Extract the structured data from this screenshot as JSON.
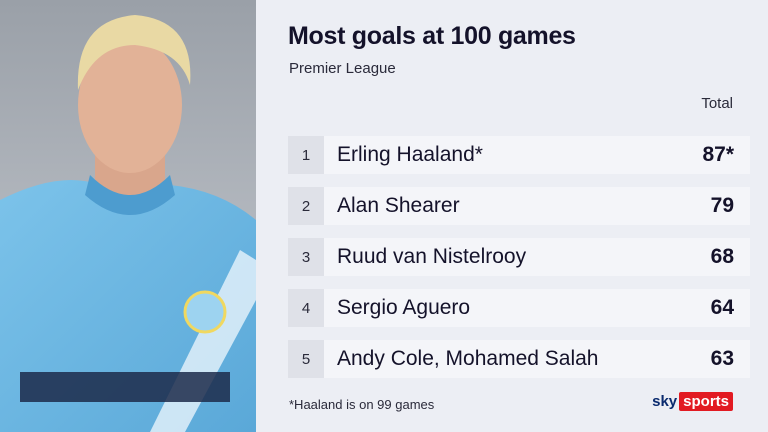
{
  "header": {
    "title": "Most goals at 100 games",
    "subtitle": "Premier League"
  },
  "table": {
    "column_header": "Total",
    "rows": [
      {
        "rank": 1,
        "name": "Erling Haaland*",
        "total": "87*"
      },
      {
        "rank": 2,
        "name": "Alan Shearer",
        "total": 79
      },
      {
        "rank": 3,
        "name": "Ruud van Nistelrooy",
        "total": 68
      },
      {
        "rank": 4,
        "name": "Sergio Aguero",
        "total": 64
      },
      {
        "rank": 5,
        "name": "Andy Cole, Mohamed Salah",
        "total": 63
      }
    ]
  },
  "footnote": "*Haaland is on 99 games",
  "logo": {
    "sky": "sky",
    "sports": "sports"
  }
}
